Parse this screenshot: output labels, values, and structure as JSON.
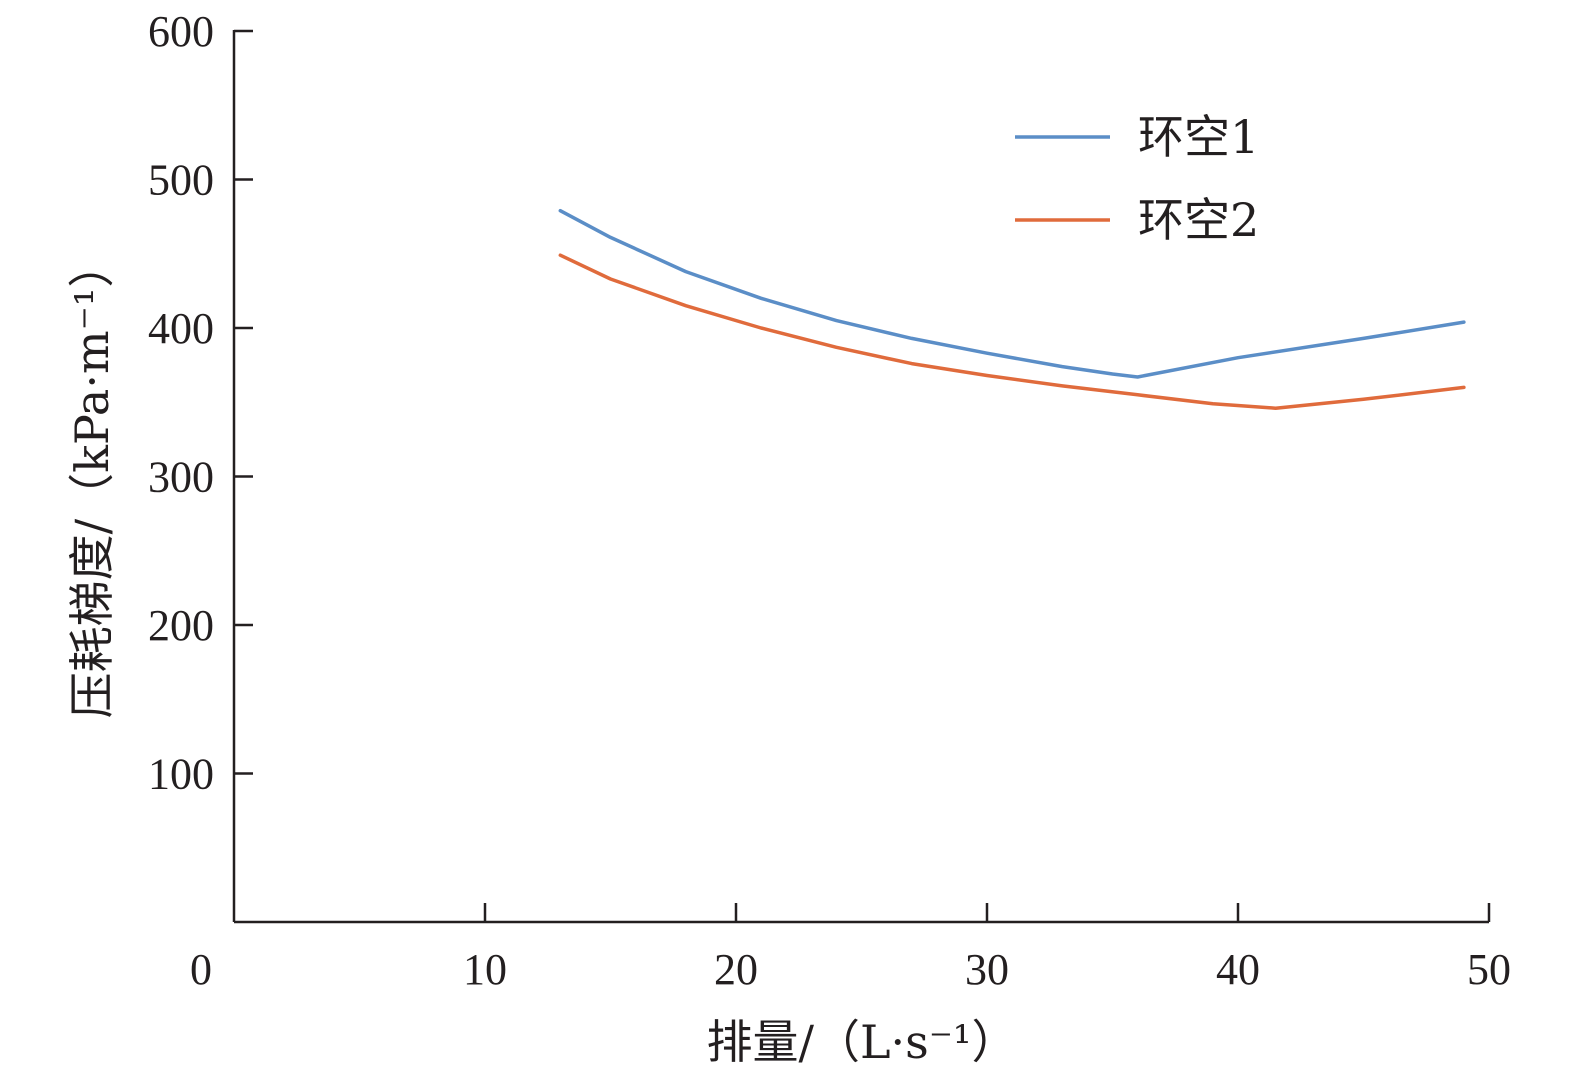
{
  "chart_data": {
    "type": "line",
    "title": "",
    "xlabel": "排量/（L·s⁻¹）",
    "ylabel": "压耗梯度/（kPa·m⁻¹）",
    "xlim": [
      0,
      50
    ],
    "ylim": [
      0,
      600
    ],
    "xticks": [
      0,
      10,
      20,
      30,
      40,
      50
    ],
    "yticks": [
      100,
      200,
      300,
      400,
      500,
      600
    ],
    "grid": false,
    "legend_position": "top-right",
    "series": [
      {
        "name": "环空1",
        "color": "#5b8ec7",
        "x": [
          13,
          15,
          18,
          21,
          24,
          27,
          30,
          33,
          35,
          36,
          40,
          45,
          49
        ],
        "y": [
          479,
          461,
          438,
          420,
          405,
          393,
          383,
          374,
          369,
          367,
          380,
          393,
          404
        ]
      },
      {
        "name": "环空2",
        "color": "#e06b3c",
        "x": [
          13,
          15,
          18,
          21,
          24,
          27,
          30,
          33,
          36,
          39,
          41.5,
          45,
          49
        ],
        "y": [
          449,
          433,
          415,
          400,
          387,
          376,
          368,
          361,
          355,
          349,
          346,
          352,
          360
        ]
      }
    ]
  }
}
